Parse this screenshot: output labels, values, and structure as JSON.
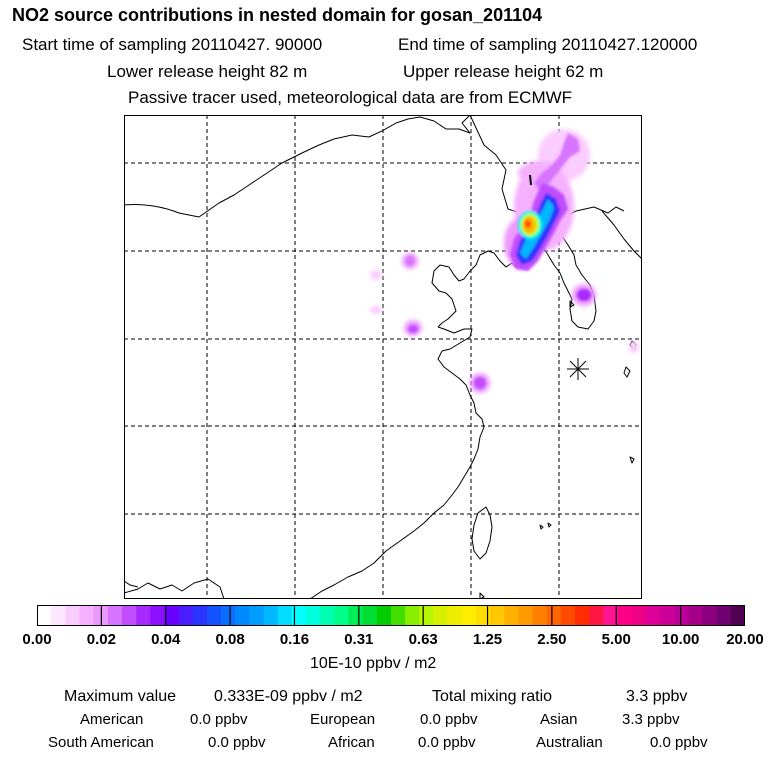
{
  "header": {
    "title": "NO2 source contributions in nested domain for gosan_201104",
    "start_label": "Start time of sampling 20110427. 90000",
    "end_label": "End time of sampling 20110427.120000",
    "lower_label": "Lower release height   82 m",
    "upper_label": "Upper release height   62 m",
    "note": "Passive tracer used, meteorological data are from ECMWF"
  },
  "map": {
    "receptor_marker": "star-marker",
    "plume_colors": [
      "#ff66ff",
      "#cc00ff",
      "#8800ff",
      "#2222ff",
      "#00a0ff",
      "#00ffff",
      "#00ff88",
      "#ffee00",
      "#ff9900",
      "#ff4400"
    ]
  },
  "colorbar": {
    "colors": [
      "#ffffff",
      "#fde6ff",
      "#fbccff",
      "#f5b0ff",
      "#ec99ff",
      "#d774ff",
      "#c14dff",
      "#a82aff",
      "#8c10ff",
      "#6a00ff",
      "#4a1cff",
      "#2b35ff",
      "#1452ff",
      "#0c6eff",
      "#0088ff",
      "#009dff",
      "#00b8ff",
      "#00ddff",
      "#00ffff",
      "#00ffdd",
      "#00ffb0",
      "#00ff88",
      "#00ee55",
      "#00dd33",
      "#00cc00",
      "#44dd00",
      "#88ee00",
      "#b8f500",
      "#d8f000",
      "#eeee00",
      "#ffee00",
      "#ffdd00",
      "#ffc800",
      "#ffb000",
      "#ff9900",
      "#ff8000",
      "#ff6600",
      "#ff4a00",
      "#ff2d00",
      "#ff1744",
      "#ff1493",
      "#ff0088",
      "#ee0088",
      "#dd0099",
      "#cc0099",
      "#bb0099",
      "#a6008a",
      "#8c0080",
      "#700070",
      "#500050"
    ],
    "tick_labels": [
      "0.00",
      "0.02",
      "0.04",
      "0.08",
      "0.16",
      "0.31",
      "0.63",
      "1.25",
      "2.50",
      "5.00",
      "10.00",
      "20.00"
    ],
    "unit_label": "10E-10 ppbv / m2"
  },
  "stats": {
    "max_label": "Maximum value",
    "max_value": "0.333E-09 ppbv / m2",
    "total_label": "Total mixing ratio",
    "total_value": "3.3 ppbv",
    "american_label": "American",
    "american_value": "0.0 ppbv",
    "european_label": "European",
    "european_value": "0.0 ppbv",
    "asian_label": "Asian",
    "asian_value": "3.3 ppbv",
    "south_american_label": "South American",
    "south_american_value": "0.0 ppbv",
    "african_label": "African",
    "african_value": "0.0 ppbv",
    "australian_label": "Australian",
    "australian_value": "0.0 ppbv"
  }
}
